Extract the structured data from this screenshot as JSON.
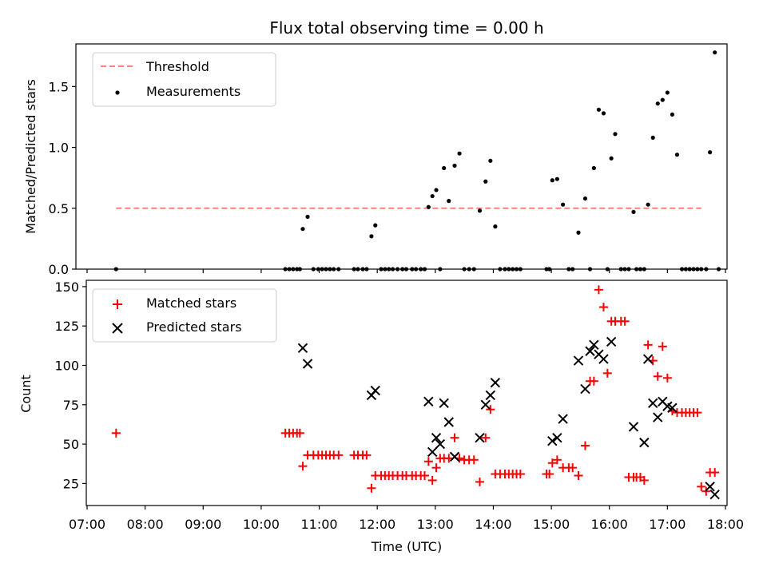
{
  "chart_data": [
    {
      "type": "scatter",
      "title": "Flux total observing time = 0.00 h",
      "xlabel": "",
      "ylabel": "Matched/Predicted stars",
      "xlim": [
        "07:00",
        "18:00"
      ],
      "ylim": [
        0,
        1.85
      ],
      "yticks": [
        "0.0",
        "0.5",
        "1.0",
        "1.5"
      ],
      "legend": {
        "placement": "top-left",
        "entries": [
          "Threshold",
          "Measurements"
        ]
      },
      "threshold": {
        "name": "Threshold",
        "value": 0.5,
        "x_start": "07:30",
        "x_end": "17:35",
        "color": "#ff7f7f",
        "style": "dashed"
      },
      "series": [
        {
          "name": "Measurements",
          "marker": "dot",
          "color": "#000000",
          "points": [
            [
              "07:30",
              0
            ],
            [
              "10:25",
              0
            ],
            [
              "10:29",
              0
            ],
            [
              "10:33",
              0
            ],
            [
              "10:37",
              0
            ],
            [
              "10:40",
              0
            ],
            [
              "10:43",
              0.33
            ],
            [
              "10:48",
              0.43
            ],
            [
              "10:54",
              0
            ],
            [
              "10:59",
              0
            ],
            [
              "11:03",
              0
            ],
            [
              "11:07",
              0
            ],
            [
              "11:11",
              0
            ],
            [
              "11:15",
              0
            ],
            [
              "11:20",
              0
            ],
            [
              "11:36",
              0
            ],
            [
              "11:40",
              0
            ],
            [
              "11:45",
              0
            ],
            [
              "11:49",
              0
            ],
            [
              "11:54",
              0.27
            ],
            [
              "11:58",
              0.36
            ],
            [
              "12:04",
              0
            ],
            [
              "12:08",
              0
            ],
            [
              "12:12",
              0
            ],
            [
              "12:16",
              0
            ],
            [
              "12:21",
              0
            ],
            [
              "12:26",
              0
            ],
            [
              "12:30",
              0
            ],
            [
              "12:36",
              0
            ],
            [
              "12:40",
              0
            ],
            [
              "12:45",
              0
            ],
            [
              "12:49",
              0
            ],
            [
              "12:53",
              0.51
            ],
            [
              "12:57",
              0.6
            ],
            [
              "13:01",
              0.65
            ],
            [
              "13:05",
              0
            ],
            [
              "13:09",
              0.83
            ],
            [
              "13:14",
              0.56
            ],
            [
              "13:20",
              0.85
            ],
            [
              "13:25",
              0.95
            ],
            [
              "13:30",
              0
            ],
            [
              "13:35",
              0
            ],
            [
              "13:40",
              0
            ],
            [
              "13:46",
              0.48
            ],
            [
              "13:52",
              0.72
            ],
            [
              "13:57",
              0.89
            ],
            [
              "14:02",
              0.35
            ],
            [
              "14:07",
              0
            ],
            [
              "14:12",
              0
            ],
            [
              "14:16",
              0
            ],
            [
              "14:20",
              0
            ],
            [
              "14:24",
              0
            ],
            [
              "14:28",
              0
            ],
            [
              "14:55",
              0
            ],
            [
              "14:58",
              0
            ],
            [
              "15:01",
              0.73
            ],
            [
              "15:06",
              0.74
            ],
            [
              "15:12",
              0.53
            ],
            [
              "15:18",
              0
            ],
            [
              "15:22",
              0
            ],
            [
              "15:28",
              0.3
            ],
            [
              "15:35",
              0.58
            ],
            [
              "15:40",
              0
            ],
            [
              "15:44",
              0.83
            ],
            [
              "15:49",
              1.31
            ],
            [
              "15:54",
              1.28
            ],
            [
              "15:58",
              0
            ],
            [
              "16:02",
              0.91
            ],
            [
              "16:06",
              1.11
            ],
            [
              "16:12",
              0
            ],
            [
              "16:16",
              0
            ],
            [
              "16:20",
              0
            ],
            [
              "16:25",
              0.47
            ],
            [
              "16:28",
              0
            ],
            [
              "16:32",
              0
            ],
            [
              "16:36",
              0
            ],
            [
              "16:40",
              0.53
            ],
            [
              "16:45",
              1.08
            ],
            [
              "16:50",
              1.36
            ],
            [
              "16:55",
              1.39
            ],
            [
              "17:00",
              1.45
            ],
            [
              "17:05",
              1.27
            ],
            [
              "17:10",
              0.94
            ],
            [
              "17:15",
              0
            ],
            [
              "17:19",
              0
            ],
            [
              "17:23",
              0
            ],
            [
              "17:27",
              0
            ],
            [
              "17:31",
              0
            ],
            [
              "17:35",
              0
            ],
            [
              "17:40",
              0
            ],
            [
              "17:44",
              0.96
            ],
            [
              "17:49",
              1.78
            ],
            [
              "17:53",
              0
            ]
          ]
        }
      ]
    },
    {
      "type": "scatter",
      "title": "",
      "xlabel": "Time (UTC)",
      "ylabel": "Count",
      "xlim": [
        "07:00",
        "18:00"
      ],
      "ylim": [
        11,
        154
      ],
      "xticks": [
        "07:00",
        "08:00",
        "09:00",
        "10:00",
        "11:00",
        "12:00",
        "13:00",
        "14:00",
        "15:00",
        "16:00",
        "17:00",
        "18:00"
      ],
      "yticks": [
        "25",
        "50",
        "75",
        "100",
        "125",
        "150"
      ],
      "legend": {
        "placement": "top-left",
        "entries": [
          "Matched stars",
          "Predicted stars"
        ]
      },
      "series": [
        {
          "name": "Matched stars",
          "marker": "plus",
          "color": "#ff0000",
          "points": [
            [
              "07:30",
              57
            ],
            [
              "10:25",
              57
            ],
            [
              "10:29",
              57
            ],
            [
              "10:33",
              57
            ],
            [
              "10:37",
              57
            ],
            [
              "10:40",
              57
            ],
            [
              "10:43",
              36
            ],
            [
              "10:48",
              43
            ],
            [
              "10:54",
              43
            ],
            [
              "10:59",
              43
            ],
            [
              "11:03",
              43
            ],
            [
              "11:07",
              43
            ],
            [
              "11:11",
              43
            ],
            [
              "11:15",
              43
            ],
            [
              "11:20",
              43
            ],
            [
              "11:36",
              43
            ],
            [
              "11:40",
              43
            ],
            [
              "11:45",
              43
            ],
            [
              "11:49",
              43
            ],
            [
              "11:54",
              22
            ],
            [
              "11:58",
              30
            ],
            [
              "12:04",
              30
            ],
            [
              "12:08",
              30
            ],
            [
              "12:12",
              30
            ],
            [
              "12:16",
              30
            ],
            [
              "12:21",
              30
            ],
            [
              "12:26",
              30
            ],
            [
              "12:30",
              30
            ],
            [
              "12:36",
              30
            ],
            [
              "12:40",
              30
            ],
            [
              "12:45",
              30
            ],
            [
              "12:49",
              30
            ],
            [
              "12:53",
              39
            ],
            [
              "12:57",
              27
            ],
            [
              "13:01",
              35
            ],
            [
              "13:05",
              41
            ],
            [
              "13:09",
              41
            ],
            [
              "13:14",
              41
            ],
            [
              "13:20",
              54
            ],
            [
              "13:25",
              41
            ],
            [
              "13:30",
              40
            ],
            [
              "13:35",
              40
            ],
            [
              "13:40",
              40
            ],
            [
              "13:46",
              26
            ],
            [
              "13:52",
              54
            ],
            [
              "13:57",
              72
            ],
            [
              "14:02",
              31
            ],
            [
              "14:07",
              31
            ],
            [
              "14:12",
              31
            ],
            [
              "14:16",
              31
            ],
            [
              "14:20",
              31
            ],
            [
              "14:24",
              31
            ],
            [
              "14:28",
              31
            ],
            [
              "14:55",
              31
            ],
            [
              "14:58",
              31
            ],
            [
              "15:01",
              38
            ],
            [
              "15:06",
              40
            ],
            [
              "15:12",
              35
            ],
            [
              "15:18",
              35
            ],
            [
              "15:22",
              35
            ],
            [
              "15:28",
              30
            ],
            [
              "15:35",
              49
            ],
            [
              "15:40",
              90
            ],
            [
              "15:44",
              90
            ],
            [
              "15:49",
              148
            ],
            [
              "15:54",
              137
            ],
            [
              "15:58",
              95
            ],
            [
              "16:02",
              128
            ],
            [
              "16:06",
              128
            ],
            [
              "16:12",
              128
            ],
            [
              "16:16",
              128
            ],
            [
              "16:20",
              29
            ],
            [
              "16:25",
              29
            ],
            [
              "16:28",
              29
            ],
            [
              "16:32",
              29
            ],
            [
              "16:36",
              27
            ],
            [
              "16:40",
              113
            ],
            [
              "16:45",
              103
            ],
            [
              "16:50",
              93
            ],
            [
              "16:55",
              112
            ],
            [
              "17:00",
              92
            ],
            [
              "17:05",
              71
            ],
            [
              "17:10",
              70
            ],
            [
              "17:15",
              70
            ],
            [
              "17:19",
              70
            ],
            [
              "17:23",
              70
            ],
            [
              "17:27",
              70
            ],
            [
              "17:31",
              70
            ],
            [
              "17:35",
              23
            ],
            [
              "17:40",
              20
            ],
            [
              "17:44",
              32
            ],
            [
              "17:49",
              32
            ]
          ]
        },
        {
          "name": "Predicted stars",
          "marker": "x",
          "color": "#000000",
          "points": [
            [
              "10:43",
              111
            ],
            [
              "10:48",
              101
            ],
            [
              "11:54",
              81
            ],
            [
              "11:58",
              84
            ],
            [
              "12:53",
              77
            ],
            [
              "12:57",
              45
            ],
            [
              "13:01",
              54
            ],
            [
              "13:05",
              50
            ],
            [
              "13:09",
              76
            ],
            [
              "13:14",
              64
            ],
            [
              "13:20",
              42
            ],
            [
              "13:46",
              54
            ],
            [
              "13:52",
              75
            ],
            [
              "13:57",
              81
            ],
            [
              "14:02",
              89
            ],
            [
              "15:01",
              52
            ],
            [
              "15:06",
              54
            ],
            [
              "15:12",
              66
            ],
            [
              "15:28",
              103
            ],
            [
              "15:35",
              85
            ],
            [
              "15:40",
              109
            ],
            [
              "15:44",
              113
            ],
            [
              "15:49",
              107
            ],
            [
              "15:54",
              104
            ],
            [
              "16:02",
              115
            ],
            [
              "16:25",
              61
            ],
            [
              "16:36",
              51
            ],
            [
              "16:40",
              104
            ],
            [
              "16:45",
              76
            ],
            [
              "16:50",
              67
            ],
            [
              "16:55",
              77
            ],
            [
              "17:00",
              74
            ],
            [
              "17:05",
              73
            ],
            [
              "17:44",
              23
            ],
            [
              "17:49",
              18
            ]
          ]
        }
      ]
    }
  ]
}
